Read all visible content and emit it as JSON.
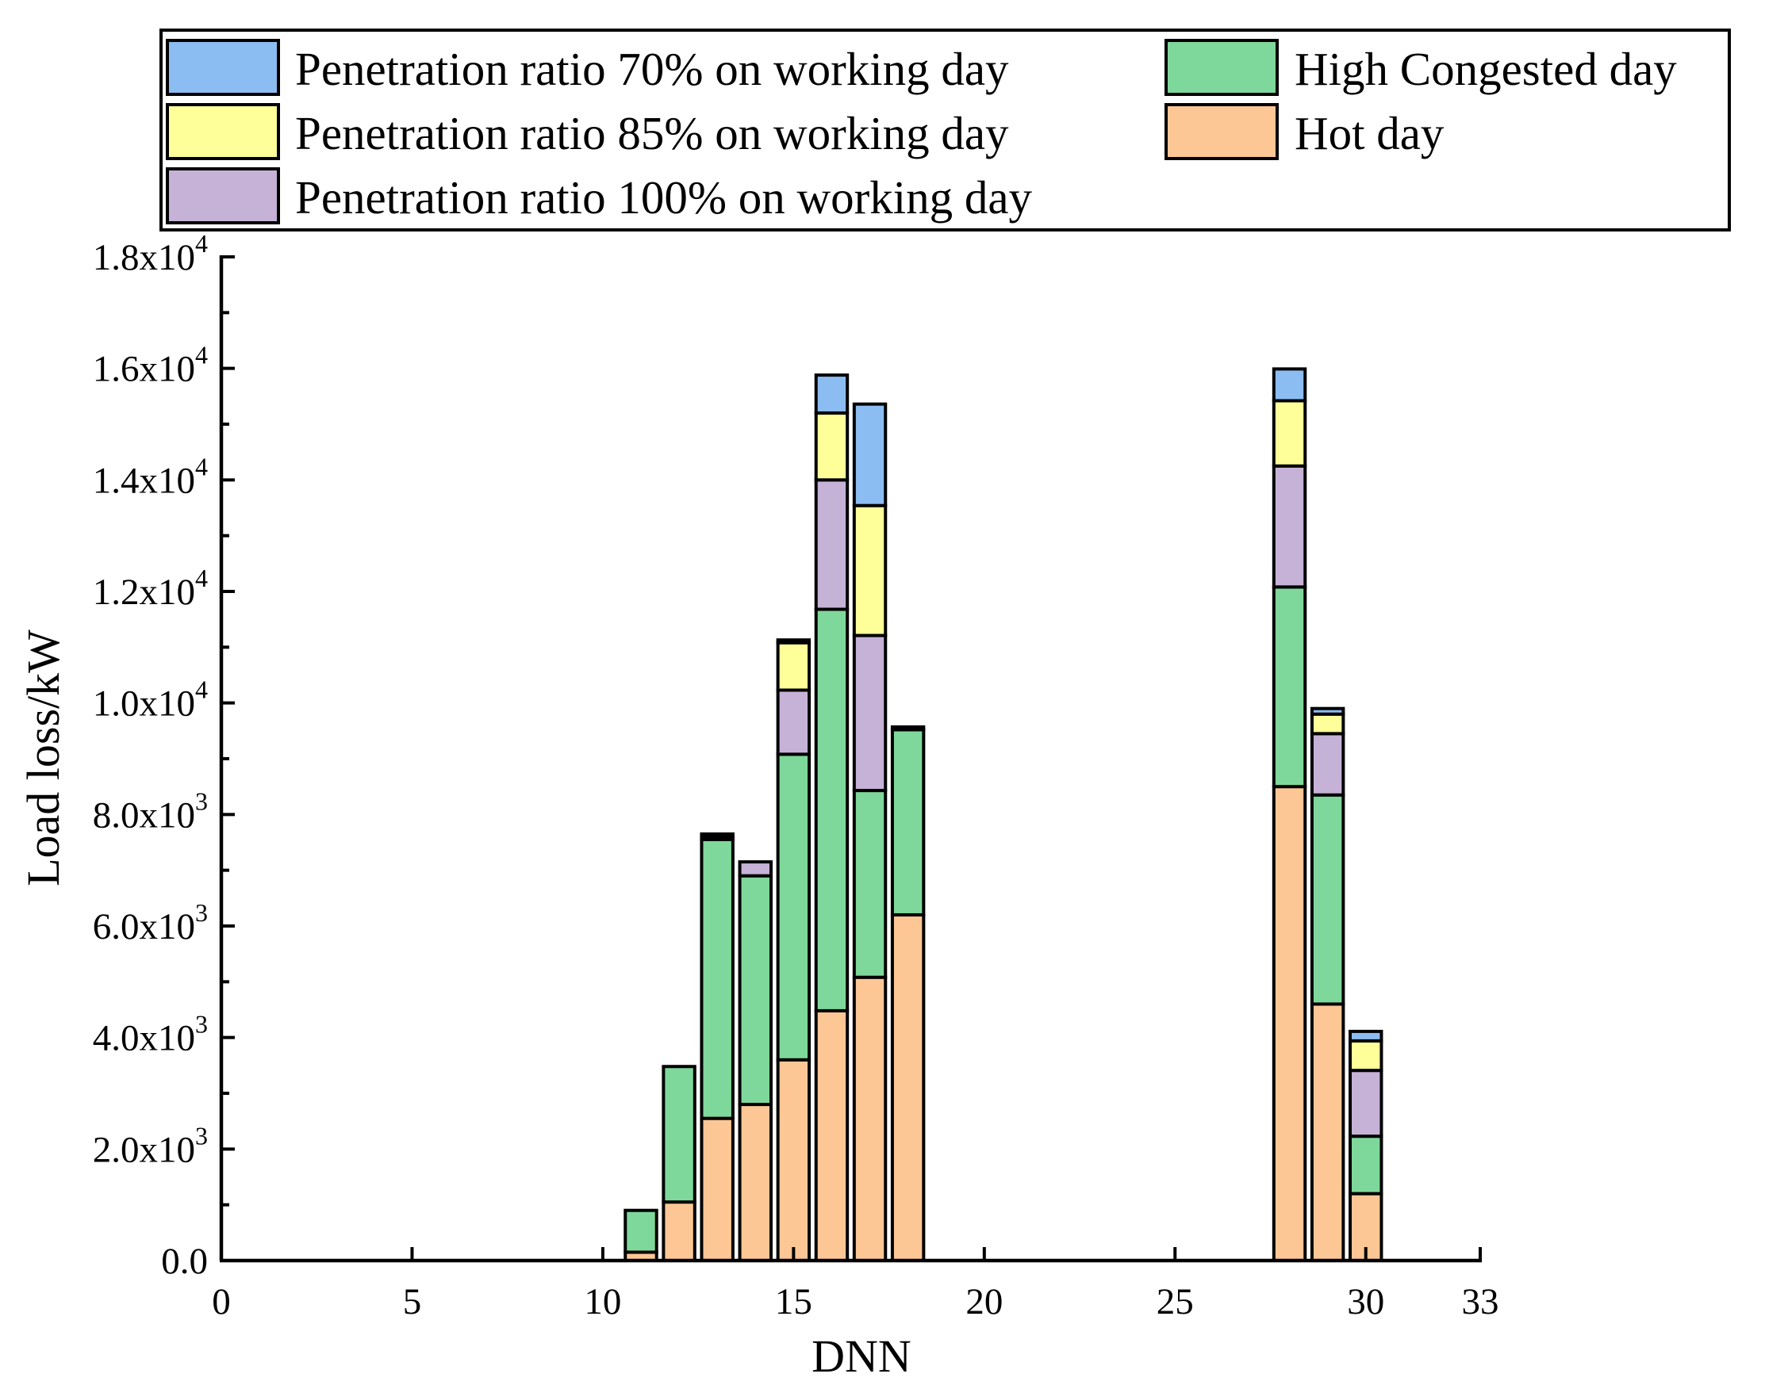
{
  "chart_data": {
    "type": "bar",
    "stacked": true,
    "xlabel": "DNN",
    "ylabel": "Load loss/kW",
    "xlim": [
      0,
      33
    ],
    "ylim": [
      0,
      18000
    ],
    "x_ticks": [
      0,
      5,
      10,
      15,
      20,
      25,
      30,
      33
    ],
    "y_ticks": [
      {
        "value": 0,
        "mantissa": "0.0",
        "exponent": ""
      },
      {
        "value": 2000,
        "mantissa": "2.0x10",
        "exponent": "3"
      },
      {
        "value": 4000,
        "mantissa": "4.0x10",
        "exponent": "3"
      },
      {
        "value": 6000,
        "mantissa": "6.0x10",
        "exponent": "3"
      },
      {
        "value": 8000,
        "mantissa": "8.0x10",
        "exponent": "3"
      },
      {
        "value": 10000,
        "mantissa": "1.0x10",
        "exponent": "4"
      },
      {
        "value": 12000,
        "mantissa": "1.2x10",
        "exponent": "4"
      },
      {
        "value": 14000,
        "mantissa": "1.4x10",
        "exponent": "4"
      },
      {
        "value": 16000,
        "mantissa": "1.6x10",
        "exponent": "4"
      },
      {
        "value": 18000,
        "mantissa": "1.8x10",
        "exponent": "4"
      }
    ],
    "grid": false,
    "legend_position": "top",
    "x": [
      11,
      12,
      13,
      14,
      15,
      16,
      17,
      18,
      28,
      29,
      30
    ],
    "series": [
      {
        "name": "Hot day",
        "color": "#FDC795",
        "values": [
          150,
          1050,
          2550,
          2800,
          3600,
          4480,
          5080,
          6200,
          8500,
          4600,
          1200
        ]
      },
      {
        "name": "High Congested day",
        "color": "#7FD89B",
        "values": [
          750,
          2430,
          5000,
          4100,
          5480,
          7200,
          3350,
          3320,
          3580,
          3750,
          1030
        ]
      },
      {
        "name": "Penetration ratio 100% on working day",
        "color": "#C6B2D7",
        "values": [
          0,
          0,
          50,
          250,
          1150,
          2320,
          2780,
          0,
          2170,
          1100,
          1180
        ]
      },
      {
        "name": "Penetration ratio 85% on working day",
        "color": "#FFFF99",
        "values": [
          0,
          0,
          0,
          0,
          850,
          1200,
          2330,
          0,
          1170,
          350,
          530
        ]
      },
      {
        "name": "Penetration ratio 70% on working day",
        "color": "#8CBDF2",
        "values": [
          0,
          0,
          50,
          0,
          50,
          680,
          1820,
          50,
          570,
          100,
          170
        ]
      }
    ]
  },
  "legend": {
    "items": [
      {
        "label": "Penetration ratio 70% on working day",
        "color": "#8CBDF2"
      },
      {
        "label": "Penetration ratio 85% on working day",
        "color": "#FFFF99"
      },
      {
        "label": "Penetration ratio 100% on working day",
        "color": "#C6B2D7"
      },
      {
        "label": "High Congested day",
        "color": "#7FD89B"
      },
      {
        "label": "Hot day",
        "color": "#FDC795"
      }
    ]
  }
}
